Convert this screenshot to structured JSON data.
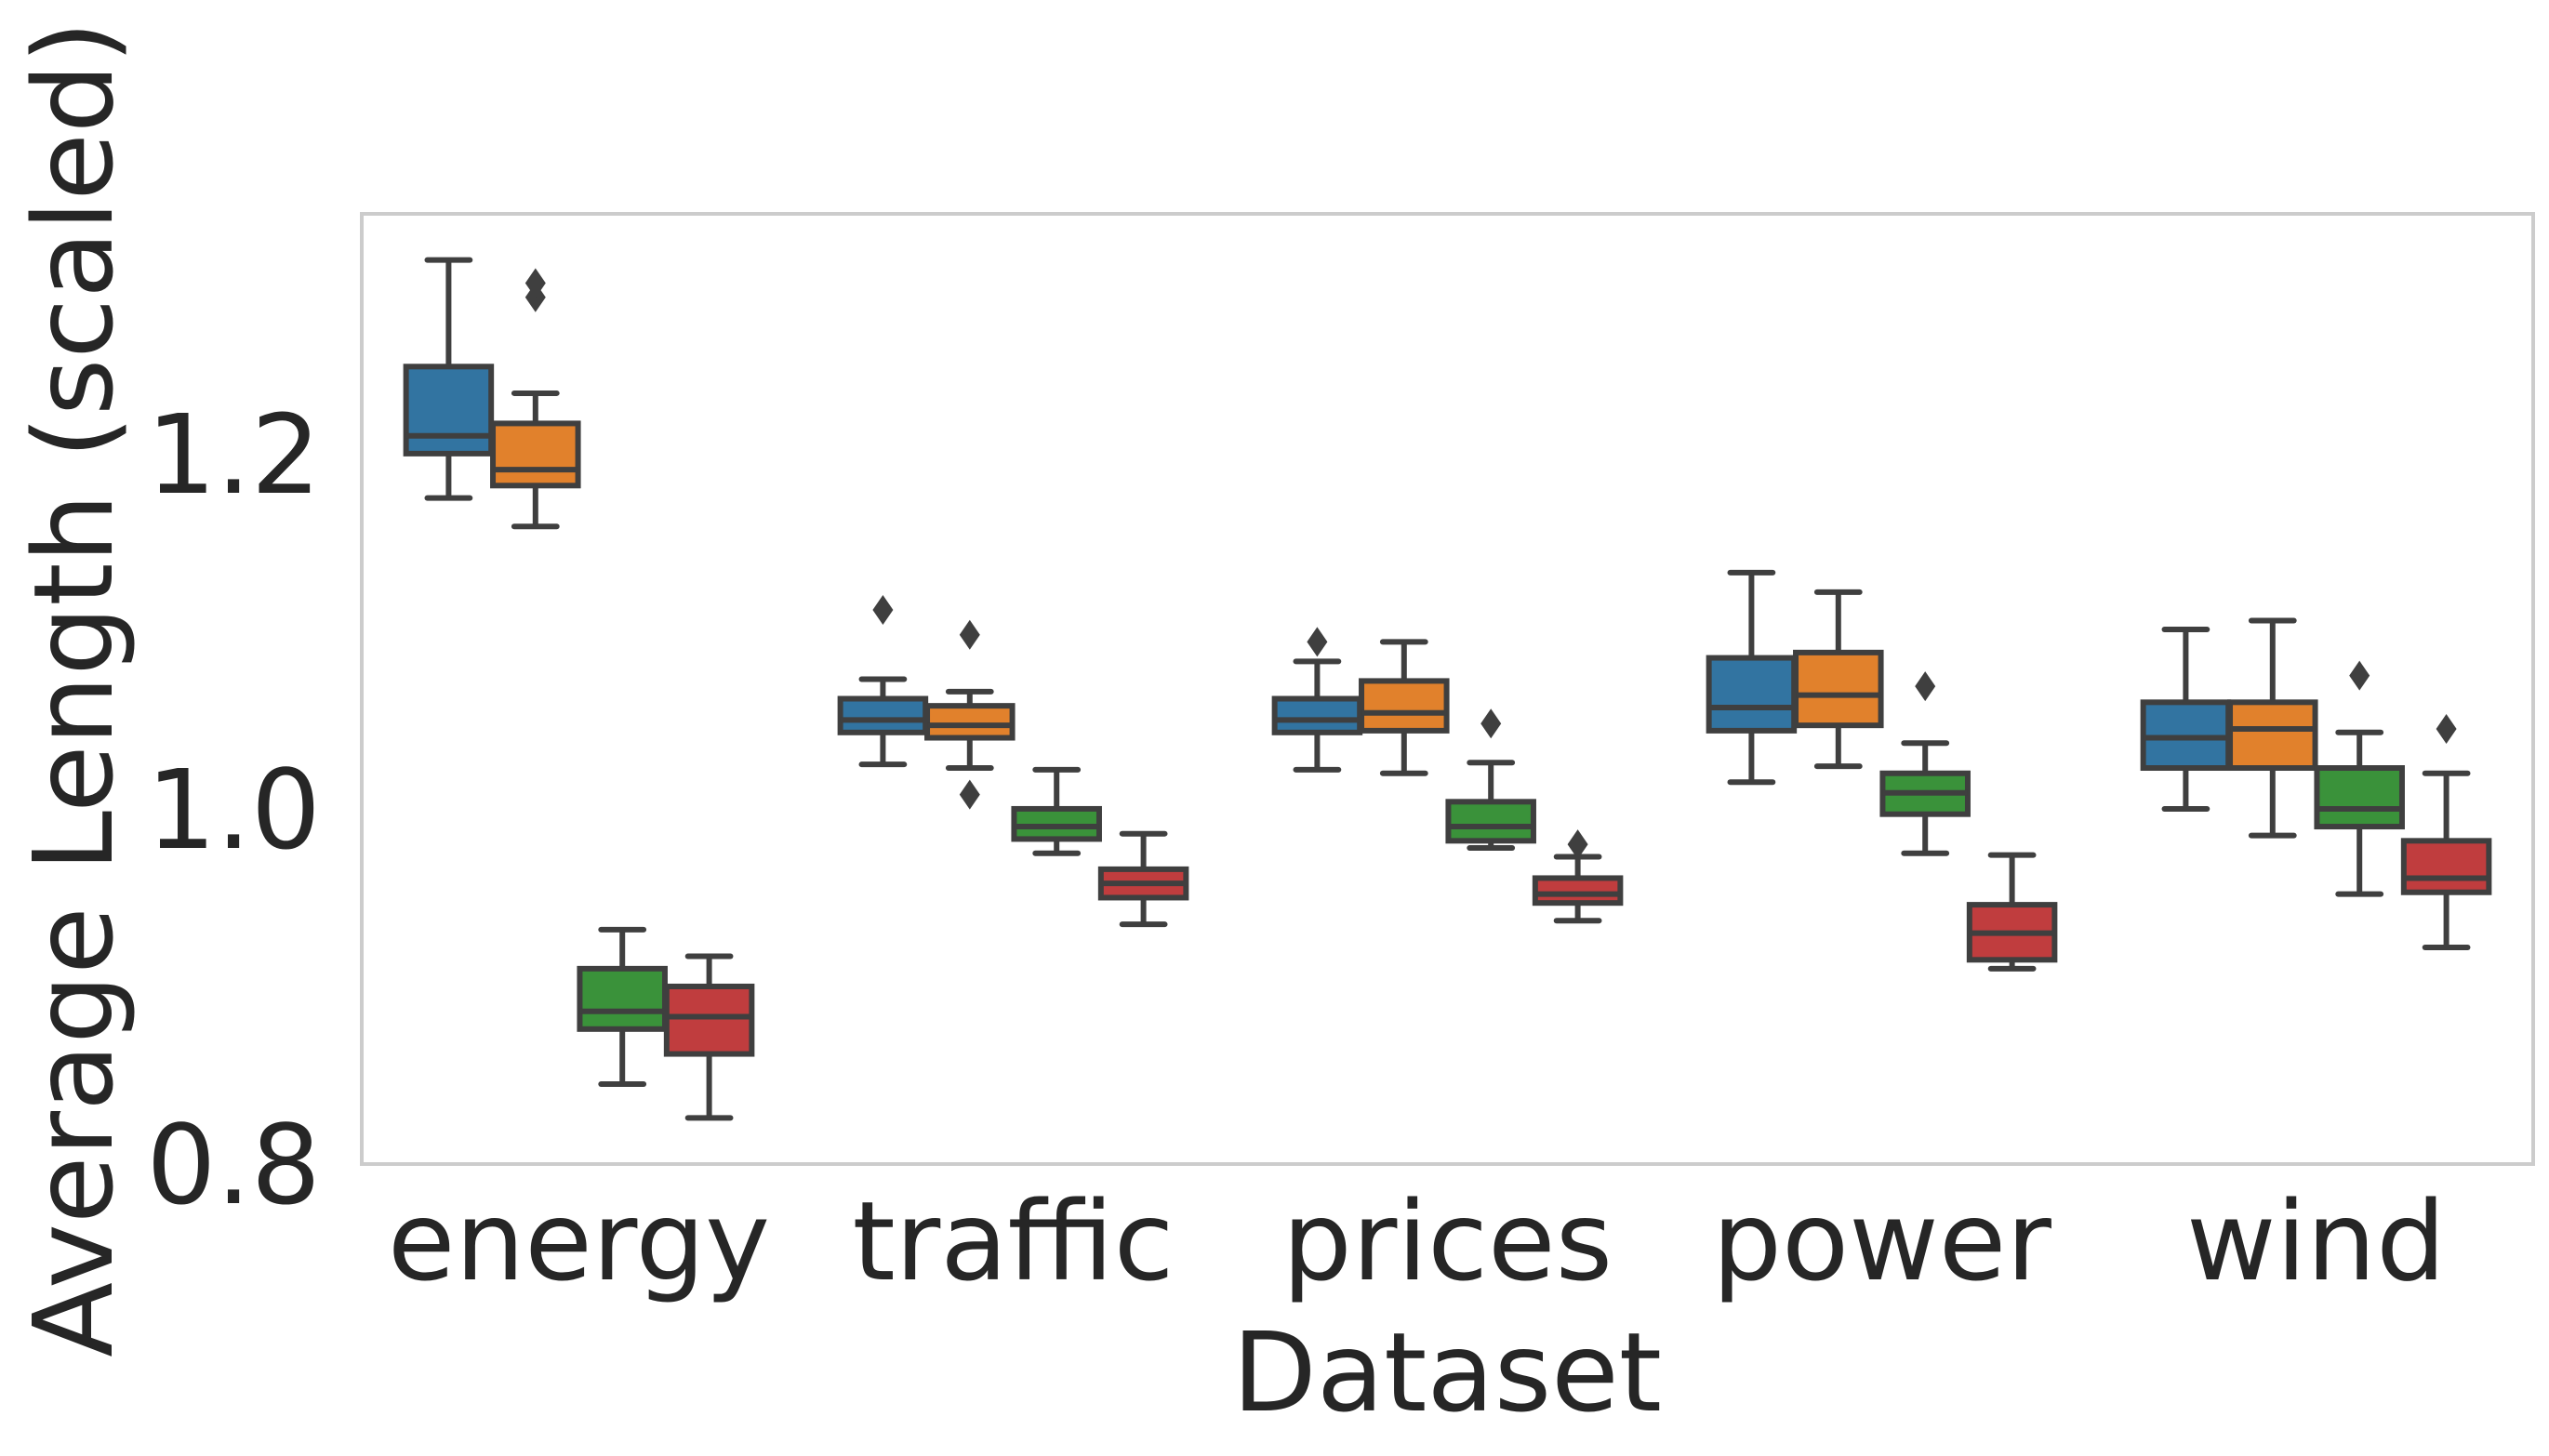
{
  "chart_data": {
    "type": "boxplot",
    "title": "",
    "xlabel": "Dataset",
    "ylabel": "Average Length (scaled)",
    "ylim": [
      0.8,
      1.335
    ],
    "yticks": [
      0.8,
      1.0,
      1.2
    ],
    "ytick_labels": [
      "0.8",
      "1.0",
      "1.2"
    ],
    "grid": false,
    "legend": null,
    "categories": [
      "energy",
      "traffic",
      "prices",
      "power",
      "wind"
    ],
    "series_colors": [
      "#3274a1",
      "#e1812c",
      "#3a923a",
      "#c03d3e"
    ],
    "boxes": [
      [
        {
          "whislo": 1.175,
          "q1": 1.2,
          "med": 1.21,
          "q3": 1.249,
          "whishi": 1.309,
          "fliers": []
        },
        {
          "whislo": 1.159,
          "q1": 1.182,
          "med": 1.191,
          "q3": 1.217,
          "whishi": 1.234,
          "fliers": [
            1.288,
            1.296
          ]
        },
        {
          "whislo": 0.845,
          "q1": 0.876,
          "med": 0.886,
          "q3": 0.91,
          "whishi": 0.932,
          "fliers": []
        },
        {
          "whislo": 0.826,
          "q1": 0.862,
          "med": 0.883,
          "q3": 0.9,
          "whishi": 0.917,
          "fliers": []
        }
      ],
      [
        {
          "whislo": 1.025,
          "q1": 1.043,
          "med": 1.05,
          "q3": 1.062,
          "whishi": 1.073,
          "fliers": [
            1.112
          ]
        },
        {
          "whislo": 1.023,
          "q1": 1.04,
          "med": 1.047,
          "q3": 1.058,
          "whishi": 1.066,
          "fliers": [
            1.008,
            1.098
          ]
        },
        {
          "whislo": 0.975,
          "q1": 0.983,
          "med": 0.99,
          "q3": 1.0,
          "whishi": 1.022,
          "fliers": []
        },
        {
          "whislo": 0.935,
          "q1": 0.95,
          "med": 0.958,
          "q3": 0.966,
          "whishi": 0.986,
          "fliers": []
        }
      ],
      [
        {
          "whislo": 1.022,
          "q1": 1.043,
          "med": 1.05,
          "q3": 1.062,
          "whishi": 1.083,
          "fliers": [
            1.094
          ]
        },
        {
          "whislo": 1.02,
          "q1": 1.044,
          "med": 1.054,
          "q3": 1.072,
          "whishi": 1.094,
          "fliers": []
        },
        {
          "whislo": 0.978,
          "q1": 0.982,
          "med": 0.99,
          "q3": 1.004,
          "whishi": 1.026,
          "fliers": [
            1.048
          ]
        },
        {
          "whislo": 0.937,
          "q1": 0.947,
          "med": 0.952,
          "q3": 0.961,
          "whishi": 0.973,
          "fliers": [
            0.98
          ]
        }
      ],
      [
        {
          "whislo": 1.015,
          "q1": 1.044,
          "med": 1.057,
          "q3": 1.085,
          "whishi": 1.133,
          "fliers": []
        },
        {
          "whislo": 1.024,
          "q1": 1.047,
          "med": 1.064,
          "q3": 1.088,
          "whishi": 1.122,
          "fliers": []
        },
        {
          "whislo": 0.975,
          "q1": 0.997,
          "med": 1.009,
          "q3": 1.02,
          "whishi": 1.037,
          "fliers": [
            1.069
          ]
        },
        {
          "whislo": 0.91,
          "q1": 0.915,
          "med": 0.93,
          "q3": 0.946,
          "whishi": 0.974,
          "fliers": []
        }
      ],
      [
        {
          "whislo": 1.0,
          "q1": 1.023,
          "med": 1.04,
          "q3": 1.06,
          "whishi": 1.101,
          "fliers": []
        },
        {
          "whislo": 0.985,
          "q1": 1.023,
          "med": 1.045,
          "q3": 1.06,
          "whishi": 1.106,
          "fliers": []
        },
        {
          "whislo": 0.952,
          "q1": 0.99,
          "med": 1.0,
          "q3": 1.023,
          "whishi": 1.043,
          "fliers": [
            1.075
          ]
        },
        {
          "whislo": 0.922,
          "q1": 0.953,
          "med": 0.961,
          "q3": 0.982,
          "whishi": 1.02,
          "fliers": [
            1.045
          ]
        }
      ]
    ]
  }
}
